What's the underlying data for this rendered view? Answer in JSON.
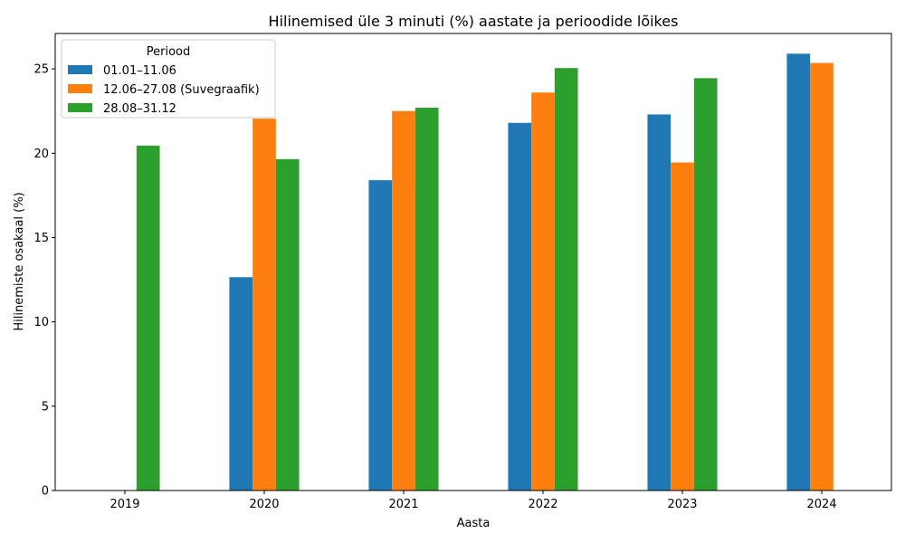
{
  "chart_data": {
    "type": "bar",
    "title": "Hilinemised üle 3 minuti (%) aastate ja perioodide lõikes",
    "xlabel": "Aasta",
    "ylabel": "Hilinemiste osakaal (%)",
    "categories": [
      "2019",
      "2020",
      "2021",
      "2022",
      "2023",
      "2024"
    ],
    "ylim": [
      0,
      27.1
    ],
    "yticks": [
      0,
      5,
      10,
      15,
      20,
      25
    ],
    "grid": false,
    "legend": {
      "title": "Periood",
      "placement": "top-left"
    },
    "series": [
      {
        "name": "01.01–11.06",
        "color": "#1f77b4",
        "values": [
          null,
          12.65,
          18.4,
          21.8,
          22.3,
          25.9
        ]
      },
      {
        "name": "12.06–27.08 (Suvegraafik)",
        "color": "#ff7f0e",
        "values": [
          null,
          22.05,
          22.5,
          23.6,
          19.45,
          25.35
        ]
      },
      {
        "name": "28.08–31.12",
        "color": "#2ca02c",
        "values": [
          20.45,
          19.65,
          22.7,
          25.05,
          24.45,
          null
        ]
      }
    ]
  }
}
